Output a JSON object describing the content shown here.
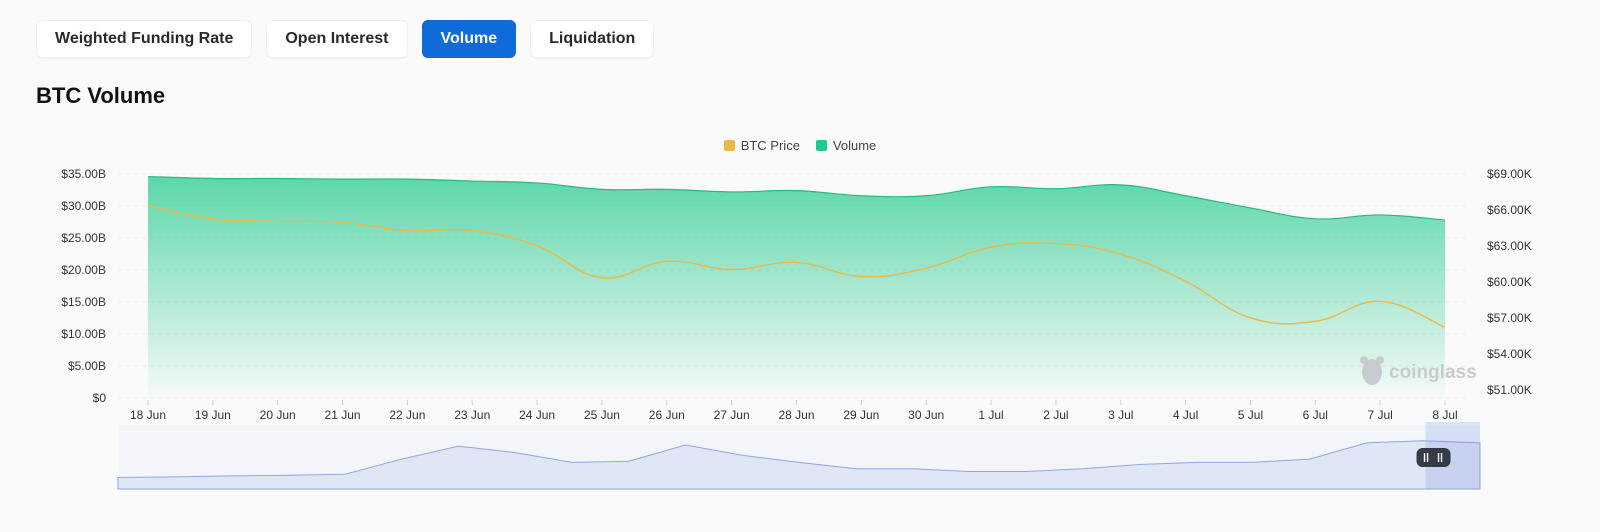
{
  "tabs": [
    {
      "label": "Weighted Funding Rate",
      "active": false
    },
    {
      "label": "Open Interest",
      "active": false
    },
    {
      "label": "Volume",
      "active": true
    },
    {
      "label": "Liquidation",
      "active": false
    }
  ],
  "watermark": "coinglass",
  "colors": {
    "price": "#e8b94a",
    "volume": "#1fc98a",
    "accent": "#0f6bd8",
    "navigator": "#8fa8e0"
  },
  "chart_data": {
    "type": "area",
    "title": "BTC Volume",
    "categories": [
      "18 Jun",
      "19 Jun",
      "20 Jun",
      "21 Jun",
      "22 Jun",
      "23 Jun",
      "24 Jun",
      "25 Jun",
      "26 Jun",
      "27 Jun",
      "28 Jun",
      "29 Jun",
      "30 Jun",
      "1 Jul",
      "2 Jul",
      "3 Jul",
      "4 Jul",
      "5 Jul",
      "6 Jul",
      "7 Jul",
      "8 Jul"
    ],
    "legend": {
      "position": "top-center"
    },
    "y_left": {
      "ticks": [
        "$0",
        "$5.00B",
        "$10.00B",
        "$15.00B",
        "$20.00B",
        "$25.00B",
        "$30.00B",
        "$35.00B"
      ],
      "min": 0,
      "max": 35
    },
    "y_right": {
      "ticks": [
        "$51.00K",
        "$54.00K",
        "$57.00K",
        "$60.00K",
        "$63.00K",
        "$66.00K",
        "$69.00K"
      ],
      "min": 50,
      "max": 69
    },
    "series": [
      {
        "name": "Volume",
        "type": "area",
        "axis": "left",
        "values": [
          34.6,
          34.3,
          34.3,
          34.2,
          34.2,
          33.9,
          33.6,
          32.6,
          32.6,
          32.2,
          32.4,
          31.6,
          31.6,
          33.0,
          32.7,
          33.3,
          31.6,
          29.7,
          28.0,
          28.6,
          27.8
        ]
      },
      {
        "name": "BTC Price",
        "type": "line",
        "axis": "right",
        "values": [
          66.3,
          65.2,
          65.0,
          64.9,
          64.2,
          64.2,
          62.9,
          60.2,
          61.6,
          60.9,
          61.5,
          60.3,
          61.0,
          62.8,
          63.1,
          62.2,
          59.9,
          56.8,
          56.5,
          58.2,
          56.0
        ]
      }
    ],
    "navigator": {
      "values": [
        0.14,
        0.15,
        0.17,
        0.18,
        0.2,
        0.48,
        0.72,
        0.6,
        0.42,
        0.44,
        0.74,
        0.55,
        0.42,
        0.3,
        0.3,
        0.25,
        0.25,
        0.3,
        0.38,
        0.42,
        0.42,
        0.48,
        0.78,
        0.82,
        0.78
      ],
      "range": [
        0.96,
        1.0
      ]
    }
  }
}
